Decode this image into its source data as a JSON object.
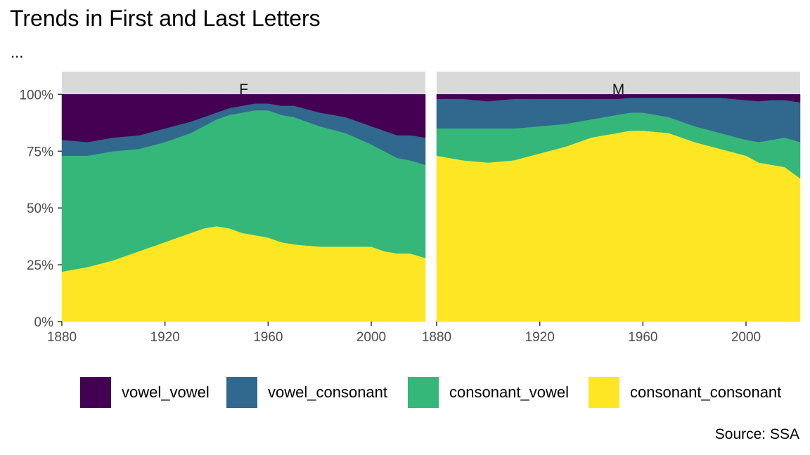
{
  "title": "Trends in First and Last Letters",
  "subtitle": "...",
  "caption": "Source: SSA",
  "colors": {
    "vowel_vowel": "#440154",
    "vowel_consonant": "#31688e",
    "consonant_vowel": "#35b779",
    "consonant_consonant": "#fde725",
    "strip_background": "#d9d9d9"
  },
  "legend": [
    {
      "key": "vowel_vowel",
      "label": "vowel_vowel"
    },
    {
      "key": "vowel_consonant",
      "label": "vowel_consonant"
    },
    {
      "key": "consonant_vowel",
      "label": "consonant_vowel"
    },
    {
      "key": "consonant_consonant",
      "label": "consonant_consonant"
    }
  ],
  "chart_data": {
    "type": "area",
    "stacked": true,
    "y_format": "percent",
    "xlim": [
      1880,
      2021
    ],
    "ylim": [
      0,
      1.1
    ],
    "x_ticks": [
      1880,
      1920,
      1960,
      2000
    ],
    "y_ticks": [
      0,
      0.25,
      0.5,
      0.75,
      1.0
    ],
    "y_tick_labels": [
      "0%",
      "25%",
      "50%",
      "75%",
      "100%"
    ],
    "grid": false,
    "legend_position": "bottom",
    "stack_order_bottom_to_top": [
      "consonant_consonant",
      "consonant_vowel",
      "vowel_consonant",
      "vowel_vowel"
    ],
    "facets": [
      {
        "label": "F",
        "x": [
          1880,
          1890,
          1900,
          1910,
          1920,
          1930,
          1935,
          1940,
          1945,
          1950,
          1955,
          1960,
          1965,
          1970,
          1980,
          1990,
          2000,
          2005,
          2010,
          2015,
          2021
        ],
        "series": [
          {
            "name": "consonant_consonant",
            "values": [
              0.22,
              0.24,
              0.27,
              0.31,
              0.35,
              0.39,
              0.41,
              0.42,
              0.41,
              0.39,
              0.38,
              0.37,
              0.35,
              0.34,
              0.33,
              0.33,
              0.33,
              0.31,
              0.3,
              0.3,
              0.28
            ]
          },
          {
            "name": "consonant_vowel",
            "values": [
              0.51,
              0.49,
              0.48,
              0.45,
              0.44,
              0.44,
              0.45,
              0.47,
              0.5,
              0.53,
              0.55,
              0.56,
              0.56,
              0.56,
              0.53,
              0.5,
              0.45,
              0.44,
              0.42,
              0.41,
              0.41
            ]
          },
          {
            "name": "vowel_consonant",
            "values": [
              0.07,
              0.06,
              0.06,
              0.06,
              0.06,
              0.05,
              0.04,
              0.03,
              0.03,
              0.03,
              0.03,
              0.03,
              0.04,
              0.05,
              0.06,
              0.07,
              0.08,
              0.09,
              0.1,
              0.11,
              0.12
            ]
          },
          {
            "name": "vowel_vowel",
            "values": [
              0.2,
              0.21,
              0.19,
              0.18,
              0.15,
              0.12,
              0.1,
              0.08,
              0.06,
              0.05,
              0.04,
              0.04,
              0.05,
              0.05,
              0.08,
              0.1,
              0.14,
              0.16,
              0.18,
              0.18,
              0.19
            ]
          }
        ]
      },
      {
        "label": "M",
        "x": [
          1880,
          1890,
          1900,
          1910,
          1920,
          1930,
          1940,
          1945,
          1950,
          1955,
          1960,
          1970,
          1980,
          1990,
          2000,
          2005,
          2010,
          2015,
          2021
        ],
        "series": [
          {
            "name": "consonant_consonant",
            "values": [
              0.73,
              0.71,
              0.7,
              0.71,
              0.74,
              0.77,
              0.81,
              0.82,
              0.83,
              0.84,
              0.84,
              0.83,
              0.79,
              0.76,
              0.73,
              0.7,
              0.69,
              0.68,
              0.63
            ]
          },
          {
            "name": "consonant_vowel",
            "values": [
              0.12,
              0.14,
              0.15,
              0.14,
              0.12,
              0.1,
              0.08,
              0.08,
              0.08,
              0.08,
              0.08,
              0.07,
              0.07,
              0.07,
              0.07,
              0.09,
              0.11,
              0.13,
              0.16
            ]
          },
          {
            "name": "vowel_consonant",
            "values": [
              0.13,
              0.13,
              0.12,
              0.13,
              0.12,
              0.11,
              0.09,
              0.08,
              0.07,
              0.065,
              0.065,
              0.085,
              0.125,
              0.155,
              0.175,
              0.18,
              0.175,
              0.165,
              0.175
            ]
          },
          {
            "name": "vowel_vowel",
            "values": [
              0.02,
              0.02,
              0.03,
              0.02,
              0.02,
              0.02,
              0.02,
              0.02,
              0.02,
              0.015,
              0.015,
              0.015,
              0.015,
              0.015,
              0.025,
              0.03,
              0.025,
              0.025,
              0.035
            ]
          }
        ]
      }
    ]
  }
}
